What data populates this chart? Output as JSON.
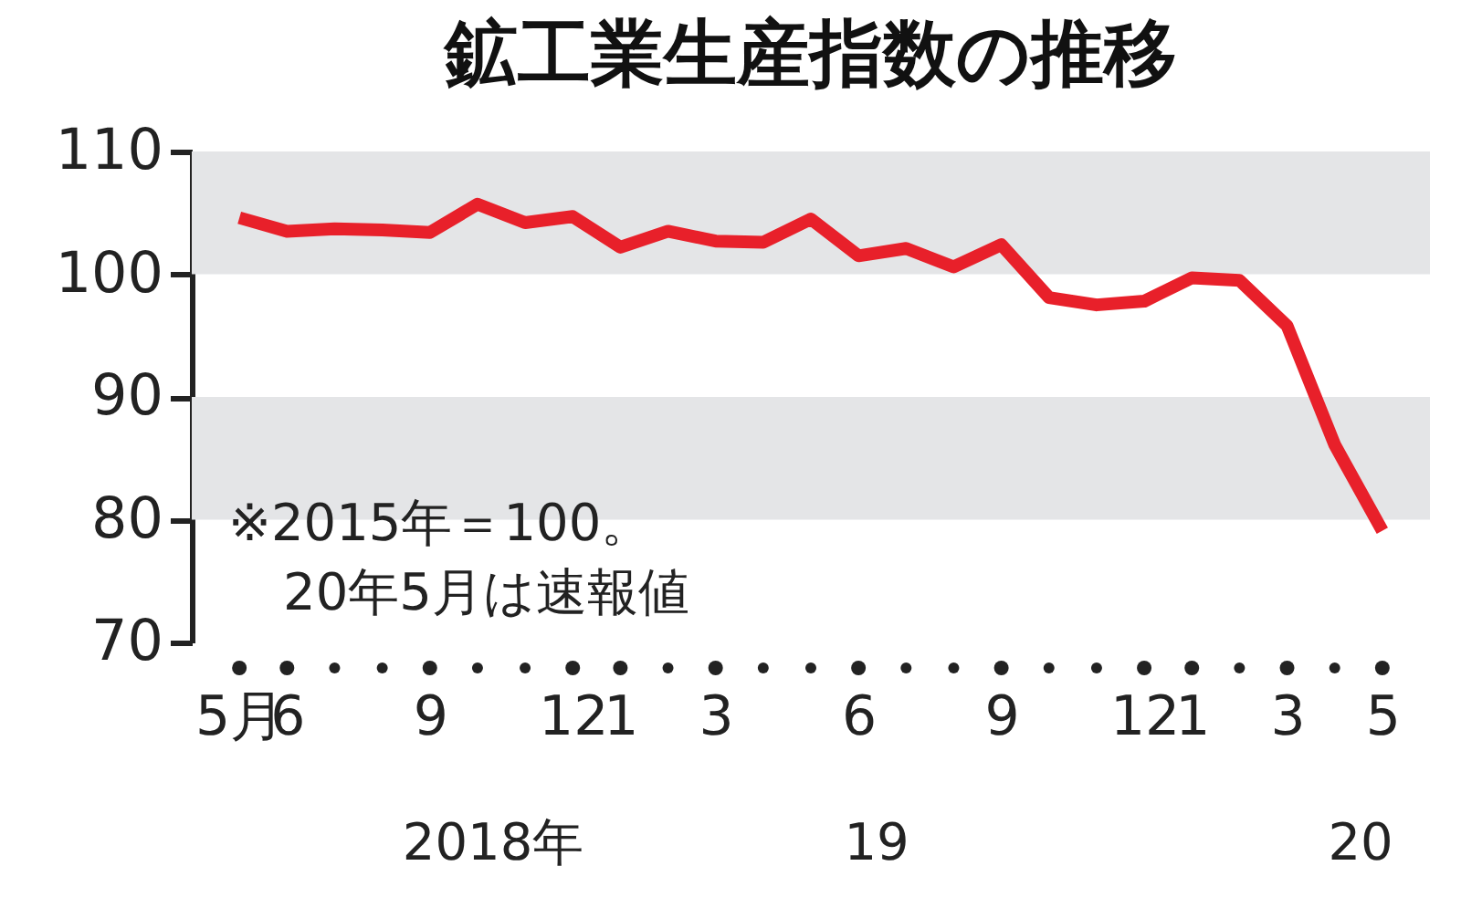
{
  "chart_data": {
    "type": "line",
    "title": "鉱工業生産指数の推移",
    "categories": [
      "5月",
      "6",
      null,
      null,
      "9",
      null,
      null,
      "12",
      "1",
      null,
      "3",
      null,
      null,
      "6",
      null,
      null,
      "9",
      null,
      null,
      "12",
      "1",
      null,
      "3",
      null,
      "5"
    ],
    "series": [
      {
        "color": "#e8202a",
        "values": [
          104.6,
          103.5,
          103.7,
          103.6,
          103.4,
          105.7,
          104.2,
          104.7,
          102.2,
          103.5,
          102.7,
          102.6,
          104.5,
          101.5,
          102.1,
          100.6,
          102.4,
          98.1,
          97.5,
          97.8,
          99.7,
          99.5,
          95.8,
          86.1,
          79.1
        ]
      }
    ],
    "ylim": [
      70,
      110
    ],
    "yticks": [
      70,
      80,
      90,
      100,
      110
    ],
    "bands": [
      {
        "axis": "y",
        "from": 100,
        "to": 110,
        "color": "#e4e5e7"
      },
      {
        "axis": "y",
        "from": 80,
        "to": 90,
        "color": "#e4e5e7"
      }
    ],
    "annotations": [
      "※2015年＝100。",
      "20年5月は速報値",
      "2018年",
      "19",
      "20"
    ]
  }
}
